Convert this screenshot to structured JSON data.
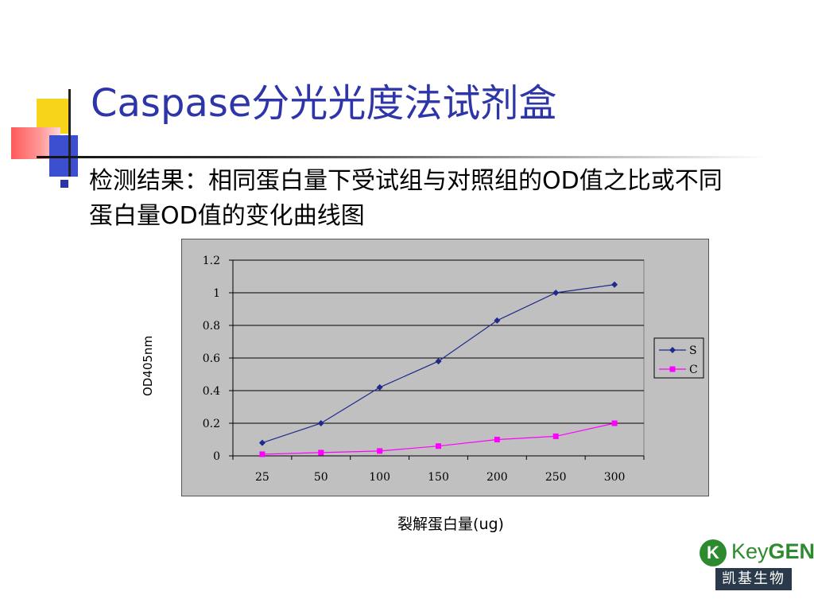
{
  "slide": {
    "title": "Caspase分光光度法试剂盒",
    "bullet": "检测结果：相同蛋白量下受试组与对照组的OD值之比或不同蛋白量OD值的变化曲线图"
  },
  "chart_data": {
    "type": "line",
    "categories": [
      "25",
      "50",
      "100",
      "150",
      "200",
      "250",
      "300"
    ],
    "series": [
      {
        "name": "S",
        "color": "#1f2a8c",
        "marker": "diamond",
        "values": [
          0.08,
          0.2,
          0.42,
          0.58,
          0.83,
          1.0,
          1.05
        ]
      },
      {
        "name": "C",
        "color": "#ff00ff",
        "marker": "square",
        "values": [
          0.01,
          0.02,
          0.03,
          0.06,
          0.1,
          0.12,
          0.2
        ]
      }
    ],
    "yticks": [
      "0",
      "0.2",
      "0.4",
      "0.6",
      "0.8",
      "1",
      "1.2"
    ],
    "ylim": [
      0,
      1.2
    ],
    "xlabel": "裂解蛋白量(ug)",
    "ylabel": "OD405nm",
    "grid": true,
    "legend": "right",
    "plot_background": "#c0c0c0"
  },
  "logo": {
    "mark": "K",
    "word_a": "Key",
    "word_b": "GEN",
    "sub": "凯基生物"
  }
}
